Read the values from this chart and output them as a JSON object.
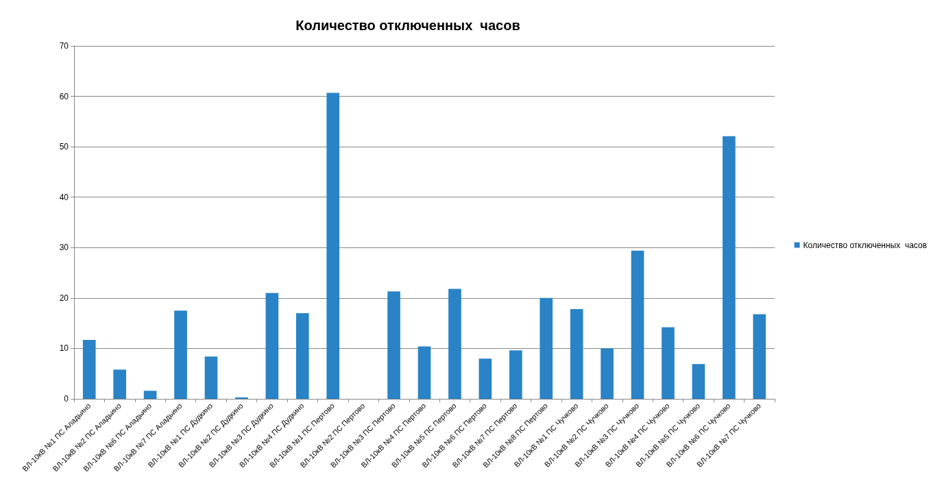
{
  "chart_data": {
    "type": "bar",
    "title": "Количество отключенных  часов",
    "categories": [
      "ВЛ-10кВ №1 ПС Аладьино",
      "ВЛ-10кВ №2 ПС Аладьино",
      "ВЛ-10кВ №6 ПС Аладьино",
      "ВЛ-10кВ №7 ПС Аладьино",
      "ВЛ-10кВ №1 ПС Дудкино",
      "ВЛ-10кВ №2 ПС Дудкино",
      "ВЛ-10кВ №3 ПС Дудкино",
      "ВЛ-10кВ №4 ПС Дудкино",
      "ВЛ-10кВ №1 ПС Пертово",
      "ВЛ-10кВ №2 ПС Пертово",
      "ВЛ-10кВ №3 ПС Пертово",
      "ВЛ-10кВ №4 ПС Пертово",
      "ВЛ-10кВ №5 ПС Пертово",
      "ВЛ-10кВ №6 ПС Пертово",
      "ВЛ-10кВ №7 ПС Пертово",
      "ВЛ-10кВ №8 ПС Пертово",
      "ВЛ-10кВ №1 ПС Чучково",
      "ВЛ-10кВ №2 ПС Чучково",
      "ВЛ-10кВ №3 ПС Чучково",
      "ВЛ-10кВ №4 ПС Чучково",
      "ВЛ-10кВ №5 ПС Чучково",
      "ВЛ-10кВ №6 ПС Чучково",
      "ВЛ-10кВ №7 ПС Чучково"
    ],
    "series": [
      {
        "name": "Количество отключенных  часов",
        "color": "#2983c6",
        "values": [
          11.7,
          5.8,
          1.6,
          17.5,
          8.4,
          0.3,
          21.0,
          17.0,
          60.7,
          0,
          21.3,
          10.4,
          21.8,
          8.0,
          9.6,
          20.0,
          17.8,
          10.0,
          29.4,
          14.2,
          6.9,
          52.1,
          16.8
        ]
      }
    ],
    "ylim": [
      0,
      70
    ],
    "yticks": [
      0,
      10,
      20,
      30,
      40,
      50,
      60,
      70
    ],
    "grid": "y",
    "legend": "right"
  }
}
